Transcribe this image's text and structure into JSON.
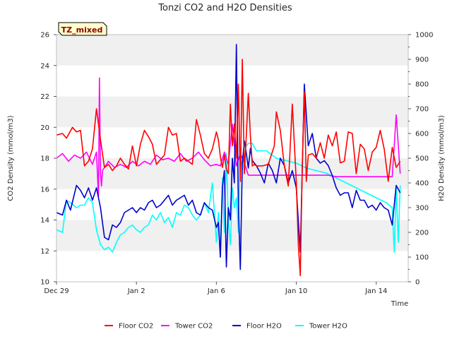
{
  "chart_data": {
    "type": "line",
    "title": "Tonzi CO2 and H2O Densities",
    "badge": "TZ_mixed",
    "xlabel": "Time",
    "ylabel_left": "CO2 Density (mmol/m3)",
    "ylabel_right": "H2O Density (mmol/m3)",
    "xlim": [
      0,
      17.6
    ],
    "ylim_left": [
      10,
      26
    ],
    "ylim_right": [
      0,
      1000
    ],
    "x_ticks": [
      {
        "value": 0,
        "label": "Dec 29"
      },
      {
        "value": 4,
        "label": "Jan 2"
      },
      {
        "value": 8,
        "label": "Jan 6"
      },
      {
        "value": 12,
        "label": "Jan 10"
      },
      {
        "value": 16,
        "label": "Jan 14"
      }
    ],
    "y_ticks_left": [
      "10",
      "12",
      "14",
      "16",
      "18",
      "20",
      "22",
      "24",
      "26"
    ],
    "y_ticks_right": [
      "0",
      "100",
      "200",
      "300",
      "400",
      "500",
      "600",
      "700",
      "800",
      "900",
      "1000"
    ],
    "grid": "horizontal bands",
    "legend_position": "bottom",
    "colors": {
      "floor_co2": "#ff0000",
      "tower_co2": "#ff00ff",
      "floor_h2o": "#0000cd",
      "tower_h2o": "#00ffff",
      "band": "#f0f0f0",
      "badge_bg": "#ffffcc"
    },
    "series": [
      {
        "name": "Floor CO2",
        "axis": "left",
        "color": "#ff0000",
        "x": [
          0.0,
          0.3,
          0.5,
          0.8,
          1.0,
          1.2,
          1.4,
          1.6,
          1.8,
          2.0,
          2.2,
          2.4,
          2.6,
          2.8,
          3.0,
          3.2,
          3.4,
          3.6,
          3.8,
          4.0,
          4.2,
          4.4,
          4.6,
          4.8,
          5.0,
          5.2,
          5.4,
          5.6,
          5.8,
          6.0,
          6.2,
          6.4,
          6.6,
          6.8,
          7.0,
          7.2,
          7.4,
          7.6,
          7.8,
          8.0,
          8.1,
          8.2,
          8.3,
          8.4,
          8.5,
          8.6,
          8.7,
          8.8,
          8.9,
          9.0,
          9.1,
          9.2,
          9.3,
          9.4,
          9.5,
          9.6,
          9.7,
          9.8,
          9.9,
          10.0,
          10.3,
          10.6,
          10.9,
          11.0,
          11.2,
          11.4,
          11.6,
          11.8,
          12.0,
          12.1,
          12.2,
          12.3,
          12.4,
          12.5,
          12.6,
          12.8,
          13.0,
          13.2,
          13.4,
          13.6,
          13.8,
          14.0,
          14.2,
          14.4,
          14.6,
          14.8,
          15.0,
          15.2,
          15.4,
          15.6,
          15.8,
          16.0,
          16.2,
          16.4,
          16.6,
          16.8,
          17.0,
          17.2
        ],
        "values": [
          19.5,
          19.6,
          19.3,
          20.0,
          19.7,
          19.8,
          17.5,
          17.8,
          18.6,
          21.2,
          19.2,
          17.4,
          17.6,
          17.2,
          17.5,
          18.0,
          17.6,
          17.3,
          18.8,
          17.5,
          18.9,
          19.8,
          19.4,
          18.9,
          17.6,
          17.9,
          18.2,
          20.0,
          19.5,
          19.6,
          17.8,
          18.0,
          17.8,
          17.6,
          20.5,
          19.5,
          18.3,
          18.0,
          18.6,
          19.7,
          19.2,
          18.1,
          17.4,
          18.2,
          17.3,
          17.0,
          21.5,
          18.8,
          20.2,
          18.0,
          22.8,
          16.5,
          24.4,
          17.0,
          19.5,
          22.2,
          19.5,
          17.5,
          17.6,
          17.5,
          17.5,
          17.6,
          18.8,
          21.0,
          19.8,
          17.5,
          16.2,
          21.5,
          16.5,
          12.4,
          10.4,
          17.5,
          22.3,
          16.5,
          18.2,
          18.3,
          18.0,
          19.0,
          18.0,
          19.5,
          18.8,
          19.7,
          17.7,
          17.8,
          19.7,
          19.6,
          17.0,
          18.9,
          18.6,
          17.2,
          18.4,
          18.7,
          19.8,
          18.6,
          16.5,
          18.7,
          17.4,
          17.8
        ]
      },
      {
        "name": "Tower CO2",
        "axis": "left",
        "color": "#ff00ff",
        "x": [
          0.0,
          0.3,
          0.6,
          0.9,
          1.2,
          1.5,
          1.8,
          2.0,
          2.1,
          2.15,
          2.2,
          2.25,
          2.3,
          2.6,
          2.9,
          3.2,
          3.5,
          3.8,
          4.1,
          4.4,
          4.7,
          5.0,
          5.3,
          5.6,
          5.9,
          6.2,
          6.5,
          6.8,
          7.1,
          7.4,
          7.7,
          8.0,
          8.2,
          8.4,
          8.6,
          8.8,
          9.0,
          9.2,
          9.4,
          9.6,
          9.8,
          10.0,
          10.4,
          10.8,
          11.2,
          11.6,
          12.0,
          12.4,
          12.8,
          13.2,
          13.6,
          14.0,
          14.4,
          14.8,
          15.2,
          15.6,
          16.0,
          16.4,
          16.8,
          17.0,
          17.2
        ],
        "values": [
          18.0,
          18.3,
          17.8,
          18.2,
          18.0,
          18.4,
          17.6,
          18.4,
          15.5,
          23.2,
          17.0,
          16.2,
          17.2,
          17.8,
          17.4,
          17.6,
          17.4,
          17.8,
          17.5,
          17.8,
          17.6,
          18.2,
          17.9,
          18.0,
          17.8,
          18.3,
          17.8,
          18.0,
          18.4,
          17.9,
          17.5,
          17.6,
          17.5,
          18.4,
          17.6,
          20.2,
          17.5,
          18.3,
          17.7,
          16.9,
          16.9,
          16.9,
          16.9,
          16.9,
          16.9,
          16.9,
          16.9,
          16.9,
          16.9,
          16.9,
          16.9,
          16.8,
          16.8,
          16.8,
          16.8,
          16.8,
          16.8,
          16.8,
          16.8,
          20.8,
          17.0
        ]
      },
      {
        "name": "Floor H2O",
        "axis": "right",
        "color": "#0000cd",
        "x": [
          0.0,
          0.3,
          0.5,
          0.7,
          1.0,
          1.2,
          1.4,
          1.6,
          1.8,
          2.0,
          2.2,
          2.4,
          2.6,
          2.8,
          3.0,
          3.2,
          3.4,
          3.6,
          3.8,
          4.0,
          4.2,
          4.4,
          4.6,
          4.8,
          5.0,
          5.2,
          5.4,
          5.6,
          5.8,
          6.0,
          6.2,
          6.4,
          6.6,
          6.8,
          7.0,
          7.2,
          7.4,
          7.6,
          7.8,
          8.0,
          8.1,
          8.2,
          8.3,
          8.4,
          8.5,
          8.6,
          8.7,
          8.8,
          8.9,
          9.0,
          9.1,
          9.2,
          9.3,
          9.4,
          9.5,
          9.6,
          9.7,
          9.8,
          10.0,
          10.2,
          10.4,
          10.6,
          10.8,
          11.0,
          11.2,
          11.4,
          11.6,
          11.8,
          12.0,
          12.2,
          12.4,
          12.6,
          12.8,
          13.0,
          13.2,
          13.4,
          13.6,
          13.8,
          14.0,
          14.2,
          14.4,
          14.6,
          14.8,
          15.0,
          15.2,
          15.4,
          15.6,
          15.8,
          16.0,
          16.2,
          16.4,
          16.6,
          16.8,
          17.0,
          17.2
        ],
        "values": [
          280,
          270,
          330,
          290,
          390,
          370,
          340,
          380,
          330,
          380,
          300,
          180,
          170,
          230,
          220,
          240,
          280,
          290,
          300,
          280,
          300,
          290,
          320,
          330,
          300,
          310,
          330,
          350,
          310,
          330,
          340,
          350,
          310,
          330,
          280,
          270,
          320,
          300,
          290,
          220,
          240,
          100,
          380,
          450,
          60,
          300,
          250,
          500,
          400,
          960,
          310,
          50,
          480,
          570,
          520,
          460,
          540,
          490,
          470,
          440,
          400,
          480,
          450,
          400,
          500,
          470,
          400,
          450,
          380,
          120,
          800,
          550,
          600,
          500,
          480,
          490,
          470,
          430,
          380,
          350,
          360,
          360,
          300,
          370,
          330,
          330,
          300,
          310,
          290,
          320,
          300,
          290,
          230,
          390,
          360
        ]
      },
      {
        "name": "Tower H2O",
        "axis": "right",
        "color": "#00ffff",
        "x": [
          0.0,
          0.3,
          0.5,
          0.7,
          1.0,
          1.2,
          1.4,
          1.6,
          1.8,
          2.0,
          2.2,
          2.4,
          2.6,
          2.8,
          3.0,
          3.2,
          3.4,
          3.6,
          3.8,
          4.0,
          4.2,
          4.4,
          4.6,
          4.8,
          5.0,
          5.2,
          5.4,
          5.6,
          5.8,
          6.0,
          6.2,
          6.4,
          6.6,
          6.8,
          7.0,
          7.2,
          7.4,
          7.6,
          7.8,
          8.0,
          8.1,
          8.2,
          8.3,
          8.4,
          8.5,
          8.6,
          8.7,
          8.8,
          8.9,
          9.0,
          9.1,
          9.2,
          9.3,
          9.4,
          9.6,
          9.8,
          10.0,
          10.5,
          11.0,
          11.5,
          12.0,
          12.5,
          13.0,
          13.5,
          14.0,
          14.5,
          15.0,
          15.5,
          16.0,
          16.5,
          16.8,
          16.9,
          17.0,
          17.1,
          17.2
        ],
        "values": [
          210,
          200,
          330,
          320,
          300,
          310,
          310,
          340,
          320,
          210,
          150,
          130,
          140,
          120,
          160,
          190,
          200,
          220,
          230,
          210,
          200,
          220,
          230,
          270,
          250,
          280,
          240,
          260,
          220,
          280,
          270,
          310,
          300,
          270,
          250,
          270,
          320,
          280,
          400,
          160,
          280,
          100,
          420,
          200,
          520,
          250,
          150,
          380,
          300,
          340,
          200,
          520,
          450,
          540,
          560,
          560,
          530,
          530,
          500,
          490,
          480,
          460,
          450,
          440,
          420,
          400,
          380,
          360,
          340,
          320,
          300,
          120,
          380,
          160,
          390
        ]
      }
    ]
  }
}
